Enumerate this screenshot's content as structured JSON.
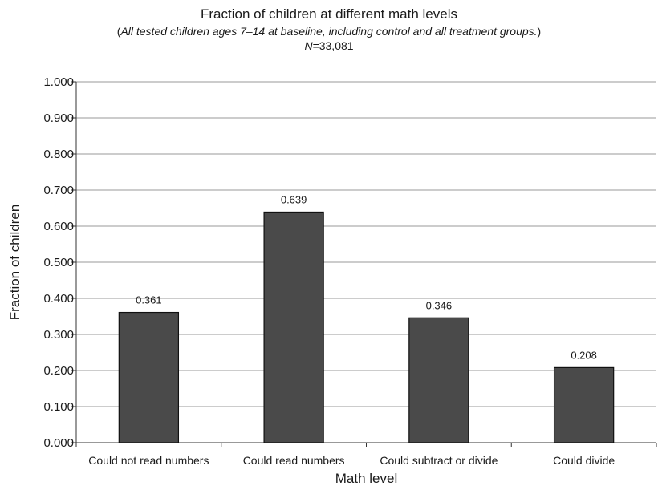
{
  "header": {
    "title": "Fraction of children at different math levels",
    "subtitle_open": "(",
    "subtitle_italic": "All tested children ages 7–14 at baseline, including control and all treatment groups.",
    "subtitle_close": ")",
    "n_label": "N",
    "n_value": "=33,081"
  },
  "chart_data": {
    "type": "bar",
    "title": "Fraction of children at different math levels",
    "subtitle": "(All tested children ages 7–14 at baseline, including control and all treatment groups.) N=33,081",
    "xlabel": "Math level",
    "ylabel": "Fraction of children",
    "categories": [
      "Could not read numbers",
      "Could read numbers",
      "Could subtract or divide",
      "Could divide"
    ],
    "values": [
      0.361,
      0.639,
      0.346,
      0.208
    ],
    "data_labels": [
      "0.361",
      "0.639",
      "0.346",
      "0.208"
    ],
    "ylim": [
      0,
      1
    ],
    "yticks": [
      "0.000",
      "0.100",
      "0.200",
      "0.300",
      "0.400",
      "0.500",
      "0.600",
      "0.700",
      "0.800",
      "0.900",
      "1.000"
    ],
    "grid": true,
    "legend": "none",
    "bar_color": "#4a4a4a",
    "grid_color": "#999999"
  }
}
